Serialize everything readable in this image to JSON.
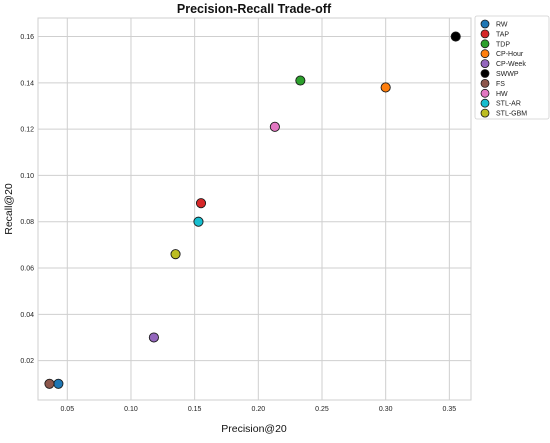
{
  "chart_data": {
    "type": "scatter",
    "title": "Precision-Recall Trade-off",
    "xlabel": "Precision@20",
    "ylabel": "Recall@20",
    "xlim": [
      0.027,
      0.367
    ],
    "ylim": [
      0.003,
      0.168
    ],
    "xticks": [
      0.05,
      0.1,
      0.15,
      0.2,
      0.25,
      0.3,
      0.35
    ],
    "xtick_labels": [
      "0.05",
      "0.10",
      "0.15",
      "0.20",
      "0.25",
      "0.30",
      "0.35"
    ],
    "yticks": [
      0.02,
      0.04,
      0.06,
      0.08,
      0.1,
      0.12,
      0.14,
      0.16
    ],
    "ytick_labels": [
      "0.02",
      "0.04",
      "0.06",
      "0.08",
      "0.10",
      "0.12",
      "0.14",
      "0.16"
    ],
    "grid": true,
    "legend_position": "outside-top-right",
    "series": [
      {
        "name": "RW",
        "color": "#1f77b4",
        "x": 0.043,
        "y": 0.01
      },
      {
        "name": "TAP",
        "color": "#d62728",
        "x": 0.155,
        "y": 0.088
      },
      {
        "name": "TDP",
        "color": "#2ca02c",
        "x": 0.233,
        "y": 0.141
      },
      {
        "name": "CP-Hour",
        "color": "#ff7f0e",
        "x": 0.3,
        "y": 0.138
      },
      {
        "name": "CP-Week",
        "color": "#9467bd",
        "x": 0.118,
        "y": 0.03
      },
      {
        "name": "SWWP",
        "color": "#000000",
        "x": 0.355,
        "y": 0.16
      },
      {
        "name": "FS",
        "color": "#8c564b",
        "x": 0.036,
        "y": 0.01
      },
      {
        "name": "HW",
        "color": "#e377c2",
        "x": 0.213,
        "y": 0.121
      },
      {
        "name": "STL-AR",
        "color": "#17becf",
        "x": 0.153,
        "y": 0.08
      },
      {
        "name": "STL-GBM",
        "color": "#bcbd22",
        "x": 0.135,
        "y": 0.066
      }
    ]
  }
}
